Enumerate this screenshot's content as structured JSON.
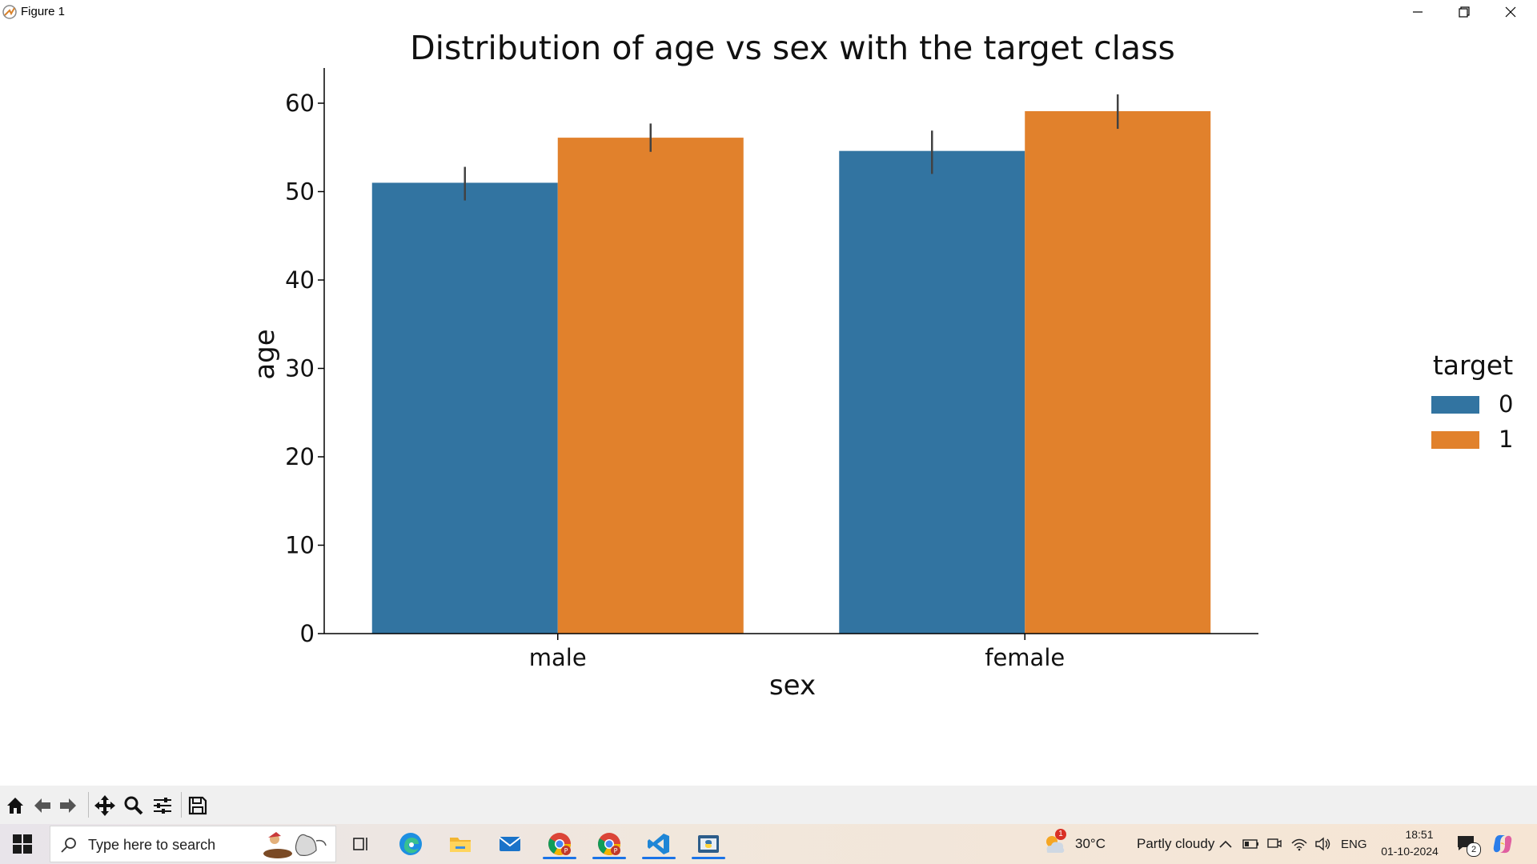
{
  "window": {
    "title": "Figure 1",
    "icons": [
      "app-icon",
      "minimize-icon",
      "restore-icon",
      "close-icon"
    ]
  },
  "chart_data": {
    "type": "bar",
    "title": "Distribution of age vs sex with the target class",
    "xlabel": "sex",
    "ylabel": "age",
    "categories": [
      "male",
      "female"
    ],
    "series": [
      {
        "name": "0",
        "color": "#3274a1",
        "values": [
          51.0,
          54.6
        ],
        "ci": [
          [
            49.0,
            52.8
          ],
          [
            52.0,
            56.9
          ]
        ]
      },
      {
        "name": "1",
        "color": "#e1812c",
        "values": [
          56.1,
          59.1
        ],
        "ci": [
          [
            54.5,
            57.7
          ],
          [
            57.1,
            61.0
          ]
        ]
      }
    ],
    "ylim": [
      0,
      64
    ],
    "yticks": [
      0,
      10,
      20,
      30,
      40,
      50,
      60
    ],
    "grid": false,
    "legend": {
      "title": "target",
      "placement": "right"
    }
  },
  "toolbar": {
    "buttons": [
      "home-icon",
      "back-icon",
      "forward-icon",
      "pan-icon",
      "zoom-icon",
      "configure-subplots-icon",
      "save-icon"
    ]
  },
  "taskbar": {
    "search_placeholder": "Type here to search",
    "apps": [
      "edge-icon",
      "file-explorer-icon",
      "mail-icon",
      "chrome-icon",
      "chrome-icon",
      "vscode-icon",
      "python-icon"
    ],
    "weather": {
      "badge": "1",
      "temperature": "30°C",
      "condition": "Partly cloudy"
    },
    "language": "ENG",
    "time": "18:51",
    "date": "01-10-2024",
    "notifications": "2"
  }
}
